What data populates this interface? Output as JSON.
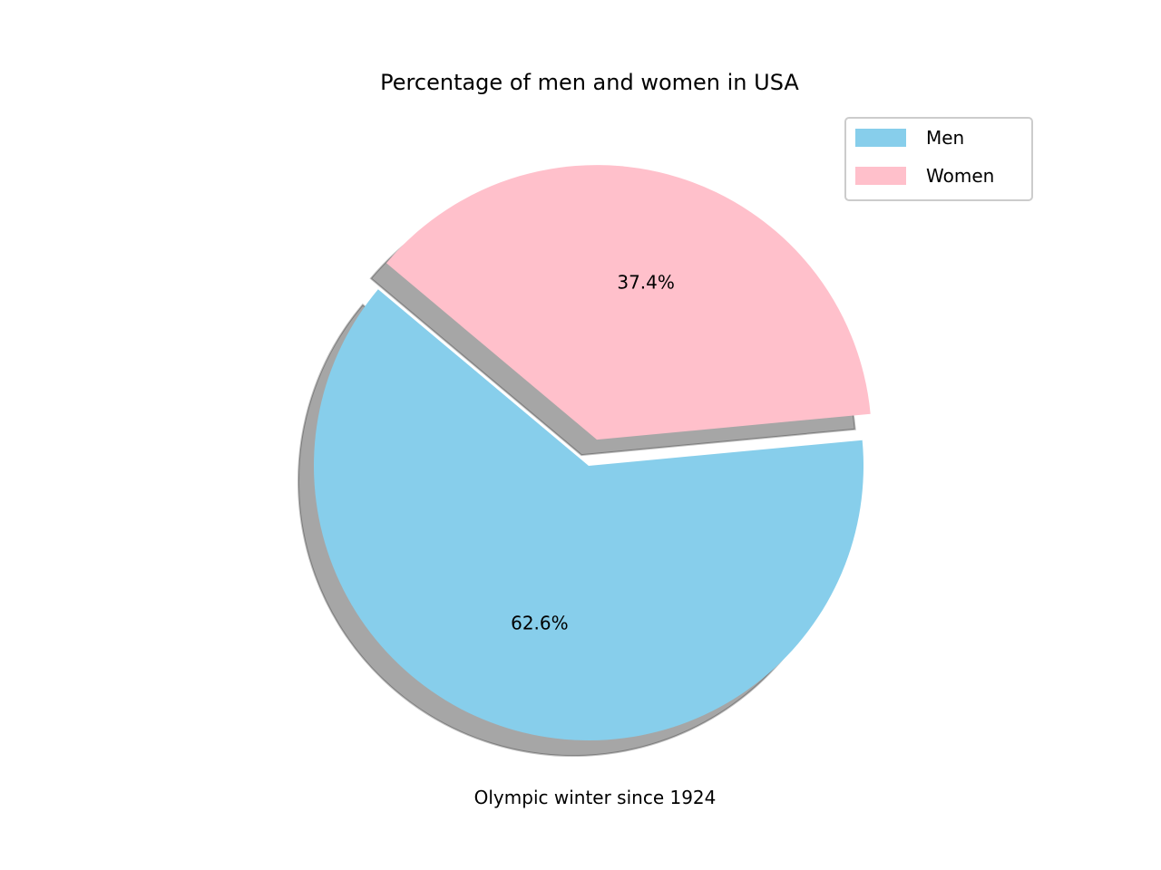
{
  "chart_data": {
    "type": "pie",
    "title": "Percentage of men and women in USA",
    "xlabel": "Olympic winter since 1924",
    "labels": [
      "Men",
      "Women"
    ],
    "values": [
      62.6,
      37.4
    ],
    "value_labels": [
      "62.6%",
      "37.4%"
    ],
    "colors": [
      "#87CEEB",
      "#FFC0CB"
    ],
    "exploded": [
      "Women"
    ],
    "shadow": true,
    "legend_position": "upper-right"
  }
}
